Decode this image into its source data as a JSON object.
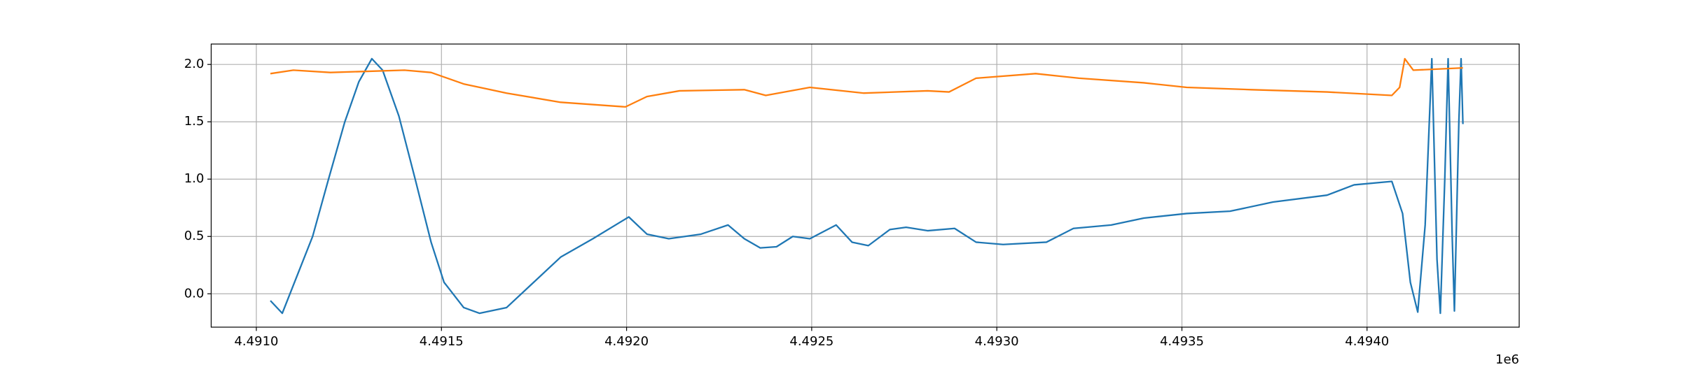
{
  "chart_data": {
    "type": "line",
    "x_offset_label": "1e6",
    "xlim": [
      4490878,
      4494411
    ],
    "ylim": [
      -0.291,
      2.178
    ],
    "xticks": [
      {
        "value": 4491000,
        "label": "4.4910"
      },
      {
        "value": 4491500,
        "label": "4.4915"
      },
      {
        "value": 4492000,
        "label": "4.4920"
      },
      {
        "value": 4492500,
        "label": "4.4925"
      },
      {
        "value": 4493000,
        "label": "4.4930"
      },
      {
        "value": 4493500,
        "label": "4.4935"
      },
      {
        "value": 4494000,
        "label": "4.4940"
      }
    ],
    "yticks": [
      {
        "value": 0,
        "label": "0.0"
      },
      0.5,
      {
        "value": 1,
        "label": "1.0"
      },
      1.5,
      {
        "value": 2,
        "label": "2.0"
      }
    ],
    "grid": true,
    "series": [
      {
        "color": "#1f77b4",
        "x": [
          4491038,
          4491070,
          4491152,
          4491195,
          4491239,
          4491277,
          4491312,
          4491341,
          4491385,
          4491429,
          4491472,
          4491507,
          4491560,
          4491603,
          4491676,
          4491749,
          4491822,
          4491909,
          4492006,
          4492055,
          4492114,
          4492201,
          4492274,
          4492318,
          4492361,
          4492405,
          4492449,
          4492495,
          4492566,
          4492609,
          4492653,
          4492711,
          4492755,
          4492813,
          4492886,
          4492944,
          4493017,
          4493134,
          4493207,
          4493309,
          4493397,
          4493513,
          4493630,
          4493746,
          4493892,
          4493965,
          4494067,
          4494096,
          4494117,
          4494137,
          4494157,
          4494175,
          4494189,
          4494198,
          4494210,
          4494219,
          4494230,
          4494236,
          4494248,
          4494254,
          4494259
        ],
        "values": [
          -0.06,
          -0.17,
          0.5,
          1.0,
          1.5,
          1.85,
          2.05,
          1.95,
          1.55,
          1.0,
          0.45,
          0.1,
          -0.12,
          -0.17,
          -0.12,
          0.1,
          0.32,
          0.48,
          0.67,
          0.52,
          0.48,
          0.52,
          0.6,
          0.48,
          0.4,
          0.41,
          0.5,
          0.48,
          0.6,
          0.45,
          0.42,
          0.56,
          0.58,
          0.55,
          0.57,
          0.45,
          0.43,
          0.45,
          0.57,
          0.6,
          0.66,
          0.7,
          0.72,
          0.8,
          0.86,
          0.95,
          0.98,
          0.7,
          0.1,
          -0.16,
          0.6,
          2.05,
          0.3,
          -0.17,
          1.0,
          2.05,
          0.5,
          -0.15,
          1.5,
          2.05,
          1.48
        ]
      },
      {
        "color": "#ff7f0e",
        "x": [
          4491038,
          4491100,
          4491200,
          4491300,
          4491400,
          4491472,
          4491560,
          4491676,
          4491822,
          4491997,
          4492055,
          4492143,
          4492318,
          4492376,
          4492495,
          4492641,
          4492813,
          4492871,
          4492944,
          4493105,
          4493222,
          4493397,
          4493513,
          4493688,
          4493892,
          4494067,
          4494088,
          4494102,
          4494125,
          4494259
        ],
        "values": [
          1.92,
          1.95,
          1.93,
          1.94,
          1.95,
          1.93,
          1.83,
          1.75,
          1.67,
          1.63,
          1.72,
          1.77,
          1.78,
          1.73,
          1.8,
          1.75,
          1.77,
          1.76,
          1.88,
          1.92,
          1.88,
          1.84,
          1.8,
          1.78,
          1.76,
          1.73,
          1.8,
          2.05,
          1.95,
          1.97
        ]
      }
    ]
  }
}
